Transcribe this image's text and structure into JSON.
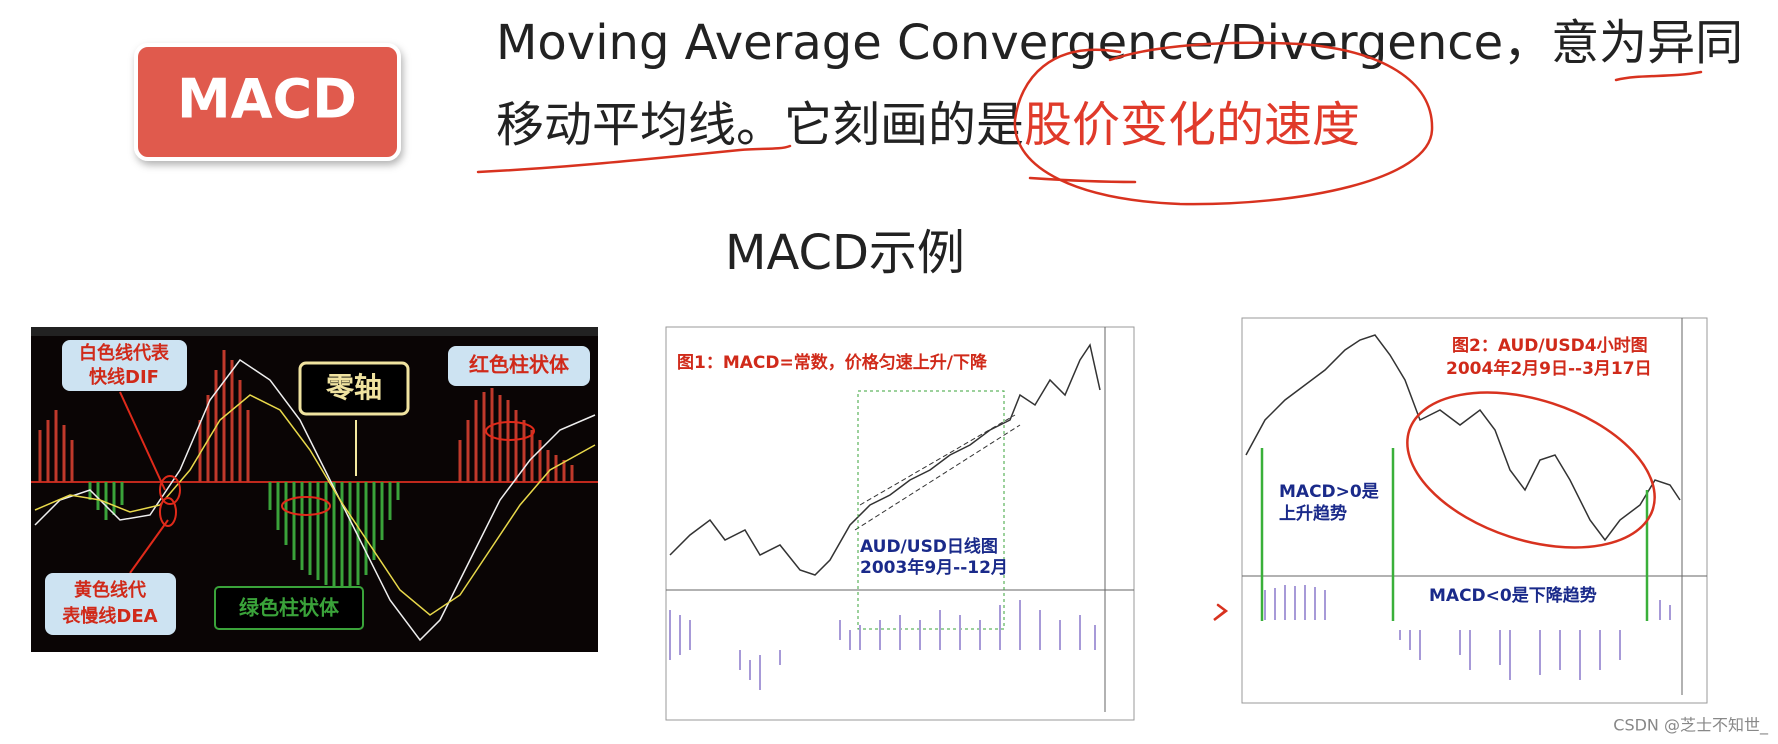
{
  "header": {
    "badge": "MACD",
    "line1": "Moving Average Convergence/Divergence，意为异同",
    "line2": "移动平均线。它刻画的是",
    "highlight": "股价变化的速度"
  },
  "section_title": "MACD示例",
  "figures": [
    {
      "labels": [
        "白色线代表",
        "快线DIF",
        "零轴",
        "红色柱状体",
        "黄色线代",
        "表慢线DEA",
        "绿色柱状体"
      ]
    },
    {
      "labels": [
        "图1：MACD=常数，价格匀速上升/下降",
        "AUD/USD日线图",
        "2003年9月--12月"
      ]
    },
    {
      "labels": [
        "图2：AUD/USD4小时图",
        "2004年2月9日--3月17日",
        "MACD>0是",
        "上升趋势",
        "MACD<0是下降趋势"
      ]
    }
  ],
  "watermark": "CSDN @芝士不知世_"
}
